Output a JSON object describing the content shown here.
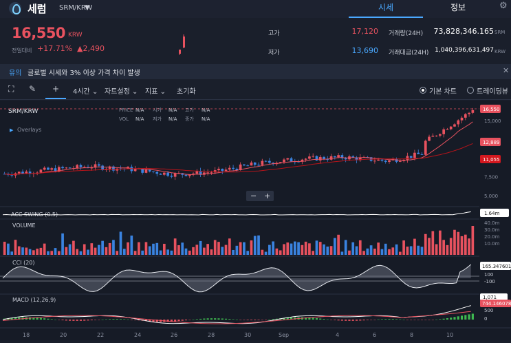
{
  "header": {
    "coin_name": "세럼",
    "pair": "SRM/KRW",
    "tabs": [
      {
        "label": "시세",
        "active": true
      },
      {
        "label": "정보",
        "active": false
      }
    ]
  },
  "summary": {
    "price": "16,550",
    "price_unit": "KRW",
    "change_label": "전일대비",
    "change_pct": "+17.71%",
    "change_abs": "▲2,490",
    "high_label": "고가",
    "high_value": "17,120",
    "low_label": "저가",
    "low_value": "13,690",
    "volume_label": "거래량(24H)",
    "volume_value": "73,828,346.165",
    "volume_unit": "SRM",
    "amount_label": "거래대금(24H)",
    "amount_value": "1,040,396,631,497",
    "amount_unit": "KRW"
  },
  "notice": {
    "tag": "유의",
    "text": "글로벌 시세와 3% 이상 가격 차이 발생"
  },
  "toolbar": {
    "interval": "4시간",
    "chart_settings": "자트설정",
    "indicators": "지표",
    "reset": "초기화",
    "basic_chart": "기본 차트",
    "trading_view": "트레이딩뷰"
  },
  "chart": {
    "symbol": "SRM/KRW",
    "ohlc_labels": {
      "price": "PRICE",
      "open": "시가",
      "high": "고가",
      "vol": "VOL",
      "low": "저가",
      "close": "종가"
    },
    "ohlc_values": {
      "price": "N/A",
      "open": "N/A",
      "high": "N/A",
      "vol": "N/A",
      "low": "N/A",
      "close": "N/A"
    },
    "overlays_label": "Overlays",
    "price_ticks": [
      "15,000",
      "12,500",
      "10,000",
      "7,500",
      "5,000"
    ],
    "price_markers": {
      "current": "16,550",
      "ma1": "12,889",
      "ma2": "11,055"
    },
    "acc_swing": {
      "label": "ACC SWING (0.5)",
      "value": "1.64m"
    },
    "volume": {
      "label": "VOLUME",
      "ticks": [
        "40.0m",
        "30.0m",
        "20.0m",
        "10.0m"
      ]
    },
    "cci": {
      "label": "CCI (20)",
      "value": "165.347601",
      "ticks": [
        "100",
        "-100"
      ]
    },
    "macd": {
      "label": "MACD (12,26,9)",
      "value": "744.146078",
      "value2": "1,071",
      "ticks": [
        "500",
        "0"
      ]
    },
    "x_ticks": [
      "18",
      "20",
      "22",
      "24",
      "26",
      "28",
      "30",
      "Sep",
      "4",
      "6",
      "8",
      "10"
    ],
    "zoom_minus": "−",
    "zoom_plus": "+"
  },
  "chart_data": {
    "type": "line",
    "title": "SRM/KRW",
    "ylabel": "",
    "x": [
      "18",
      "20",
      "22",
      "24",
      "26",
      "28",
      "30",
      "Sep",
      "4",
      "6",
      "8",
      "10"
    ],
    "series": [
      {
        "values": [
          7900,
          8400,
          8900,
          8500,
          7800,
          8200,
          9300,
          9900,
          10100,
          9600,
          10800,
          16550
        ]
      }
    ],
    "ylim": [
      5000,
      16550
    ]
  }
}
